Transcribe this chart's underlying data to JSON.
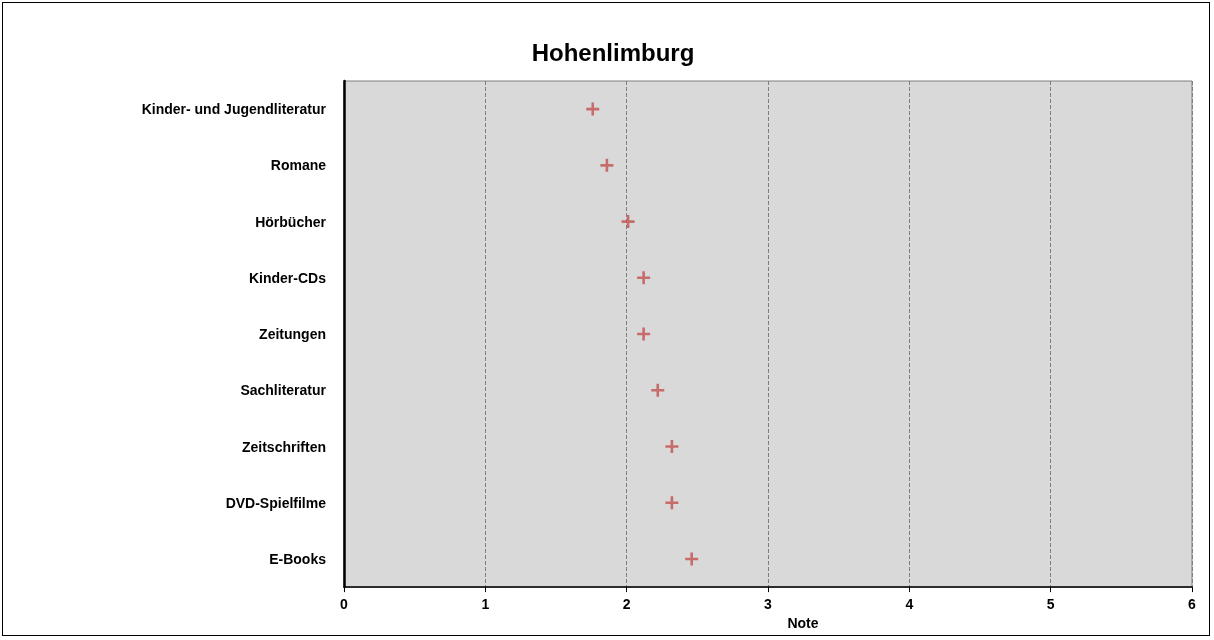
{
  "chart_data": {
    "type": "scatter",
    "title": "Hohenlimburg",
    "xlabel": "Note",
    "categories": [
      "Kinder- und Jugendliteratur",
      "Romane",
      "Hörbücher",
      "Kinder-CDs",
      "Zeitungen",
      "Sachliteratur",
      "Zeitschriften",
      "DVD-Spielfilme",
      "E-Books"
    ],
    "orientation": "horizontal",
    "series": [
      {
        "color": "#c0504d",
        "values": [
          1.76,
          1.86,
          2.01,
          2.12,
          2.12,
          2.22,
          2.32,
          2.32,
          2.46
        ]
      }
    ],
    "xlim": [
      0,
      6
    ],
    "xticks": [
      0,
      1,
      2,
      3,
      4,
      5,
      6
    ],
    "grid": "x",
    "marker": "cross"
  }
}
